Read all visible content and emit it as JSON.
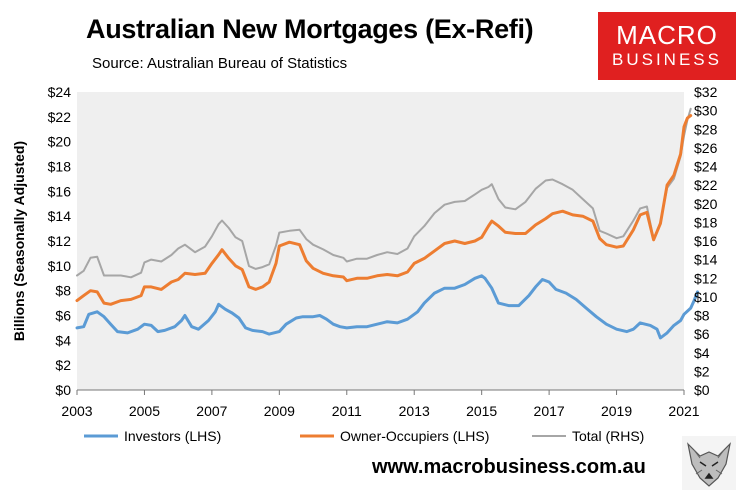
{
  "chart_data": {
    "type": "line",
    "title": "Australian New Mortgages (Ex-Refi)",
    "subtitle": "Source: Australian Bureau of Statistics",
    "ylabel": "Billions (Seasonally Adjusted)",
    "y_left": {
      "lim": [
        0,
        24
      ],
      "ticks": [
        "$0",
        "$2",
        "$4",
        "$6",
        "$8",
        "$10",
        "$12",
        "$14",
        "$16",
        "$18",
        "$20",
        "$22",
        "$24"
      ]
    },
    "y_right": {
      "lim": [
        0,
        32
      ],
      "ticks": [
        "$0",
        "$2",
        "$4",
        "$6",
        "$8",
        "$10",
        "$12",
        "$14",
        "$16",
        "$18",
        "$20",
        "$22",
        "$24",
        "$26",
        "$28",
        "$30",
        "$32"
      ]
    },
    "x_ticks": [
      "2003",
      "2005",
      "2007",
      "2009",
      "2011",
      "2013",
      "2015",
      "2017",
      "2019",
      "2021"
    ],
    "xlim": [
      2003,
      2021
    ],
    "series": [
      {
        "name": "Investors (LHS)",
        "axis": "left",
        "color": "#5b9bd5",
        "points": [
          [
            2003.0,
            5.0
          ],
          [
            2003.2,
            5.1
          ],
          [
            2003.35,
            6.1
          ],
          [
            2003.6,
            6.3
          ],
          [
            2003.8,
            5.9
          ],
          [
            2004.0,
            5.3
          ],
          [
            2004.2,
            4.7
          ],
          [
            2004.5,
            4.6
          ],
          [
            2004.8,
            4.9
          ],
          [
            2005.0,
            5.3
          ],
          [
            2005.2,
            5.2
          ],
          [
            2005.4,
            4.7
          ],
          [
            2005.6,
            4.8
          ],
          [
            2005.9,
            5.1
          ],
          [
            2006.1,
            5.6
          ],
          [
            2006.2,
            6.0
          ],
          [
            2006.4,
            5.1
          ],
          [
            2006.6,
            4.9
          ],
          [
            2006.9,
            5.6
          ],
          [
            2007.1,
            6.3
          ],
          [
            2007.2,
            6.9
          ],
          [
            2007.4,
            6.5
          ],
          [
            2007.6,
            6.2
          ],
          [
            2007.8,
            5.8
          ],
          [
            2008.0,
            5.0
          ],
          [
            2008.2,
            4.8
          ],
          [
            2008.5,
            4.7
          ],
          [
            2008.7,
            4.5
          ],
          [
            2009.0,
            4.7
          ],
          [
            2009.2,
            5.3
          ],
          [
            2009.5,
            5.8
          ],
          [
            2009.7,
            5.9
          ],
          [
            2010.0,
            5.9
          ],
          [
            2010.2,
            6.0
          ],
          [
            2010.4,
            5.7
          ],
          [
            2010.6,
            5.3
          ],
          [
            2010.8,
            5.1
          ],
          [
            2011.0,
            5.0
          ],
          [
            2011.3,
            5.1
          ],
          [
            2011.6,
            5.1
          ],
          [
            2011.9,
            5.3
          ],
          [
            2012.2,
            5.5
          ],
          [
            2012.5,
            5.4
          ],
          [
            2012.8,
            5.7
          ],
          [
            2013.1,
            6.3
          ],
          [
            2013.3,
            7.0
          ],
          [
            2013.6,
            7.8
          ],
          [
            2013.9,
            8.2
          ],
          [
            2014.2,
            8.2
          ],
          [
            2014.5,
            8.5
          ],
          [
            2014.8,
            9.0
          ],
          [
            2015.0,
            9.2
          ],
          [
            2015.1,
            9.0
          ],
          [
            2015.3,
            8.2
          ],
          [
            2015.5,
            7.0
          ],
          [
            2015.8,
            6.8
          ],
          [
            2016.1,
            6.8
          ],
          [
            2016.4,
            7.6
          ],
          [
            2016.6,
            8.3
          ],
          [
            2016.8,
            8.9
          ],
          [
            2017.0,
            8.7
          ],
          [
            2017.2,
            8.1
          ],
          [
            2017.5,
            7.8
          ],
          [
            2017.8,
            7.3
          ],
          [
            2018.1,
            6.6
          ],
          [
            2018.4,
            5.9
          ],
          [
            2018.7,
            5.3
          ],
          [
            2019.0,
            4.9
          ],
          [
            2019.3,
            4.7
          ],
          [
            2019.5,
            4.9
          ],
          [
            2019.7,
            5.4
          ],
          [
            2020.0,
            5.2
          ],
          [
            2020.2,
            4.9
          ],
          [
            2020.3,
            4.2
          ],
          [
            2020.5,
            4.6
          ],
          [
            2020.7,
            5.2
          ],
          [
            2020.9,
            5.6
          ],
          [
            2021.0,
            6.1
          ],
          [
            2021.2,
            6.6
          ],
          [
            2021.3,
            7.2
          ],
          [
            2021.4,
            7.9
          ]
        ]
      },
      {
        "name": "Owner-Occupiers (LHS)",
        "axis": "left",
        "color": "#ed7d31",
        "points": [
          [
            2003.0,
            7.2
          ],
          [
            2003.2,
            7.6
          ],
          [
            2003.4,
            8.0
          ],
          [
            2003.6,
            7.9
          ],
          [
            2003.8,
            7.0
          ],
          [
            2004.0,
            6.9
          ],
          [
            2004.3,
            7.2
          ],
          [
            2004.6,
            7.3
          ],
          [
            2004.9,
            7.6
          ],
          [
            2005.0,
            8.3
          ],
          [
            2005.2,
            8.3
          ],
          [
            2005.5,
            8.1
          ],
          [
            2005.8,
            8.7
          ],
          [
            2006.0,
            8.9
          ],
          [
            2006.2,
            9.4
          ],
          [
            2006.5,
            9.3
          ],
          [
            2006.8,
            9.4
          ],
          [
            2007.0,
            10.2
          ],
          [
            2007.2,
            10.9
          ],
          [
            2007.3,
            11.3
          ],
          [
            2007.5,
            10.6
          ],
          [
            2007.7,
            10.0
          ],
          [
            2007.9,
            9.7
          ],
          [
            2008.1,
            8.3
          ],
          [
            2008.3,
            8.1
          ],
          [
            2008.5,
            8.3
          ],
          [
            2008.7,
            8.7
          ],
          [
            2008.9,
            10.2
          ],
          [
            2009.0,
            11.6
          ],
          [
            2009.3,
            11.9
          ],
          [
            2009.6,
            11.7
          ],
          [
            2009.8,
            10.4
          ],
          [
            2010.0,
            9.8
          ],
          [
            2010.3,
            9.4
          ],
          [
            2010.6,
            9.2
          ],
          [
            2010.9,
            9.1
          ],
          [
            2011.0,
            8.8
          ],
          [
            2011.3,
            9.0
          ],
          [
            2011.6,
            9.0
          ],
          [
            2011.9,
            9.2
          ],
          [
            2012.2,
            9.3
          ],
          [
            2012.5,
            9.2
          ],
          [
            2012.8,
            9.5
          ],
          [
            2013.0,
            10.2
          ],
          [
            2013.3,
            10.6
          ],
          [
            2013.6,
            11.2
          ],
          [
            2013.9,
            11.8
          ],
          [
            2014.2,
            12.0
          ],
          [
            2014.5,
            11.8
          ],
          [
            2014.8,
            12.0
          ],
          [
            2015.0,
            12.3
          ],
          [
            2015.2,
            13.2
          ],
          [
            2015.3,
            13.6
          ],
          [
            2015.5,
            13.2
          ],
          [
            2015.7,
            12.7
          ],
          [
            2016.0,
            12.6
          ],
          [
            2016.3,
            12.6
          ],
          [
            2016.6,
            13.3
          ],
          [
            2016.9,
            13.8
          ],
          [
            2017.1,
            14.2
          ],
          [
            2017.4,
            14.4
          ],
          [
            2017.7,
            14.1
          ],
          [
            2018.0,
            14.0
          ],
          [
            2018.3,
            13.6
          ],
          [
            2018.5,
            12.2
          ],
          [
            2018.7,
            11.7
          ],
          [
            2019.0,
            11.5
          ],
          [
            2019.2,
            11.6
          ],
          [
            2019.5,
            12.9
          ],
          [
            2019.7,
            14.1
          ],
          [
            2019.9,
            14.3
          ],
          [
            2020.1,
            12.1
          ],
          [
            2020.3,
            13.4
          ],
          [
            2020.5,
            16.5
          ],
          [
            2020.7,
            17.3
          ],
          [
            2020.9,
            19.0
          ],
          [
            2021.0,
            21.2
          ],
          [
            2021.1,
            21.9
          ],
          [
            2021.2,
            22.1
          ]
        ]
      },
      {
        "name": "Total (RHS)",
        "axis": "right",
        "color": "#a6a6a6",
        "points": [
          [
            2003.0,
            12.3
          ],
          [
            2003.2,
            12.8
          ],
          [
            2003.4,
            14.2
          ],
          [
            2003.6,
            14.3
          ],
          [
            2003.8,
            12.3
          ],
          [
            2004.0,
            12.3
          ],
          [
            2004.3,
            12.3
          ],
          [
            2004.6,
            12.1
          ],
          [
            2004.9,
            12.6
          ],
          [
            2005.0,
            13.7
          ],
          [
            2005.2,
            14.0
          ],
          [
            2005.5,
            13.8
          ],
          [
            2005.8,
            14.5
          ],
          [
            2006.0,
            15.2
          ],
          [
            2006.2,
            15.6
          ],
          [
            2006.5,
            14.8
          ],
          [
            2006.8,
            15.4
          ],
          [
            2007.0,
            16.5
          ],
          [
            2007.2,
            17.8
          ],
          [
            2007.3,
            18.2
          ],
          [
            2007.5,
            17.4
          ],
          [
            2007.7,
            16.4
          ],
          [
            2007.9,
            16.0
          ],
          [
            2008.1,
            13.3
          ],
          [
            2008.3,
            13.0
          ],
          [
            2008.5,
            13.2
          ],
          [
            2008.7,
            13.5
          ],
          [
            2008.9,
            15.5
          ],
          [
            2009.0,
            16.9
          ],
          [
            2009.3,
            17.1
          ],
          [
            2009.6,
            17.2
          ],
          [
            2009.8,
            16.2
          ],
          [
            2010.0,
            15.6
          ],
          [
            2010.3,
            15.1
          ],
          [
            2010.6,
            14.5
          ],
          [
            2010.9,
            14.2
          ],
          [
            2011.0,
            13.8
          ],
          [
            2011.3,
            14.1
          ],
          [
            2011.6,
            14.1
          ],
          [
            2011.9,
            14.5
          ],
          [
            2012.2,
            14.8
          ],
          [
            2012.5,
            14.6
          ],
          [
            2012.8,
            15.2
          ],
          [
            2013.0,
            16.5
          ],
          [
            2013.3,
            17.6
          ],
          [
            2013.6,
            19.0
          ],
          [
            2013.9,
            19.9
          ],
          [
            2014.2,
            20.2
          ],
          [
            2014.5,
            20.3
          ],
          [
            2014.8,
            21.0
          ],
          [
            2015.0,
            21.5
          ],
          [
            2015.2,
            21.8
          ],
          [
            2015.3,
            22.1
          ],
          [
            2015.5,
            20.5
          ],
          [
            2015.7,
            19.6
          ],
          [
            2016.0,
            19.4
          ],
          [
            2016.3,
            20.2
          ],
          [
            2016.6,
            21.6
          ],
          [
            2016.9,
            22.5
          ],
          [
            2017.1,
            22.6
          ],
          [
            2017.4,
            22.1
          ],
          [
            2017.7,
            21.5
          ],
          [
            2018.0,
            20.5
          ],
          [
            2018.3,
            19.5
          ],
          [
            2018.5,
            17.1
          ],
          [
            2018.7,
            16.8
          ],
          [
            2019.0,
            16.3
          ],
          [
            2019.2,
            16.5
          ],
          [
            2019.5,
            18.2
          ],
          [
            2019.7,
            19.5
          ],
          [
            2019.9,
            19.7
          ],
          [
            2020.1,
            16.2
          ],
          [
            2020.3,
            18.0
          ],
          [
            2020.5,
            21.7
          ],
          [
            2020.7,
            22.7
          ],
          [
            2020.9,
            25.1
          ],
          [
            2021.0,
            27.3
          ],
          [
            2021.1,
            29.0
          ],
          [
            2021.2,
            30.2
          ]
        ]
      }
    ],
    "legend_position": "bottom"
  },
  "branding": {
    "logo_line1": "MACRO",
    "logo_line2": "BUSINESS",
    "url": "www.macrobusiness.com.au",
    "fox_icon": "fox-icon"
  },
  "colors": {
    "logo_bg": "#e02020",
    "plot_bg": "#efefef"
  }
}
